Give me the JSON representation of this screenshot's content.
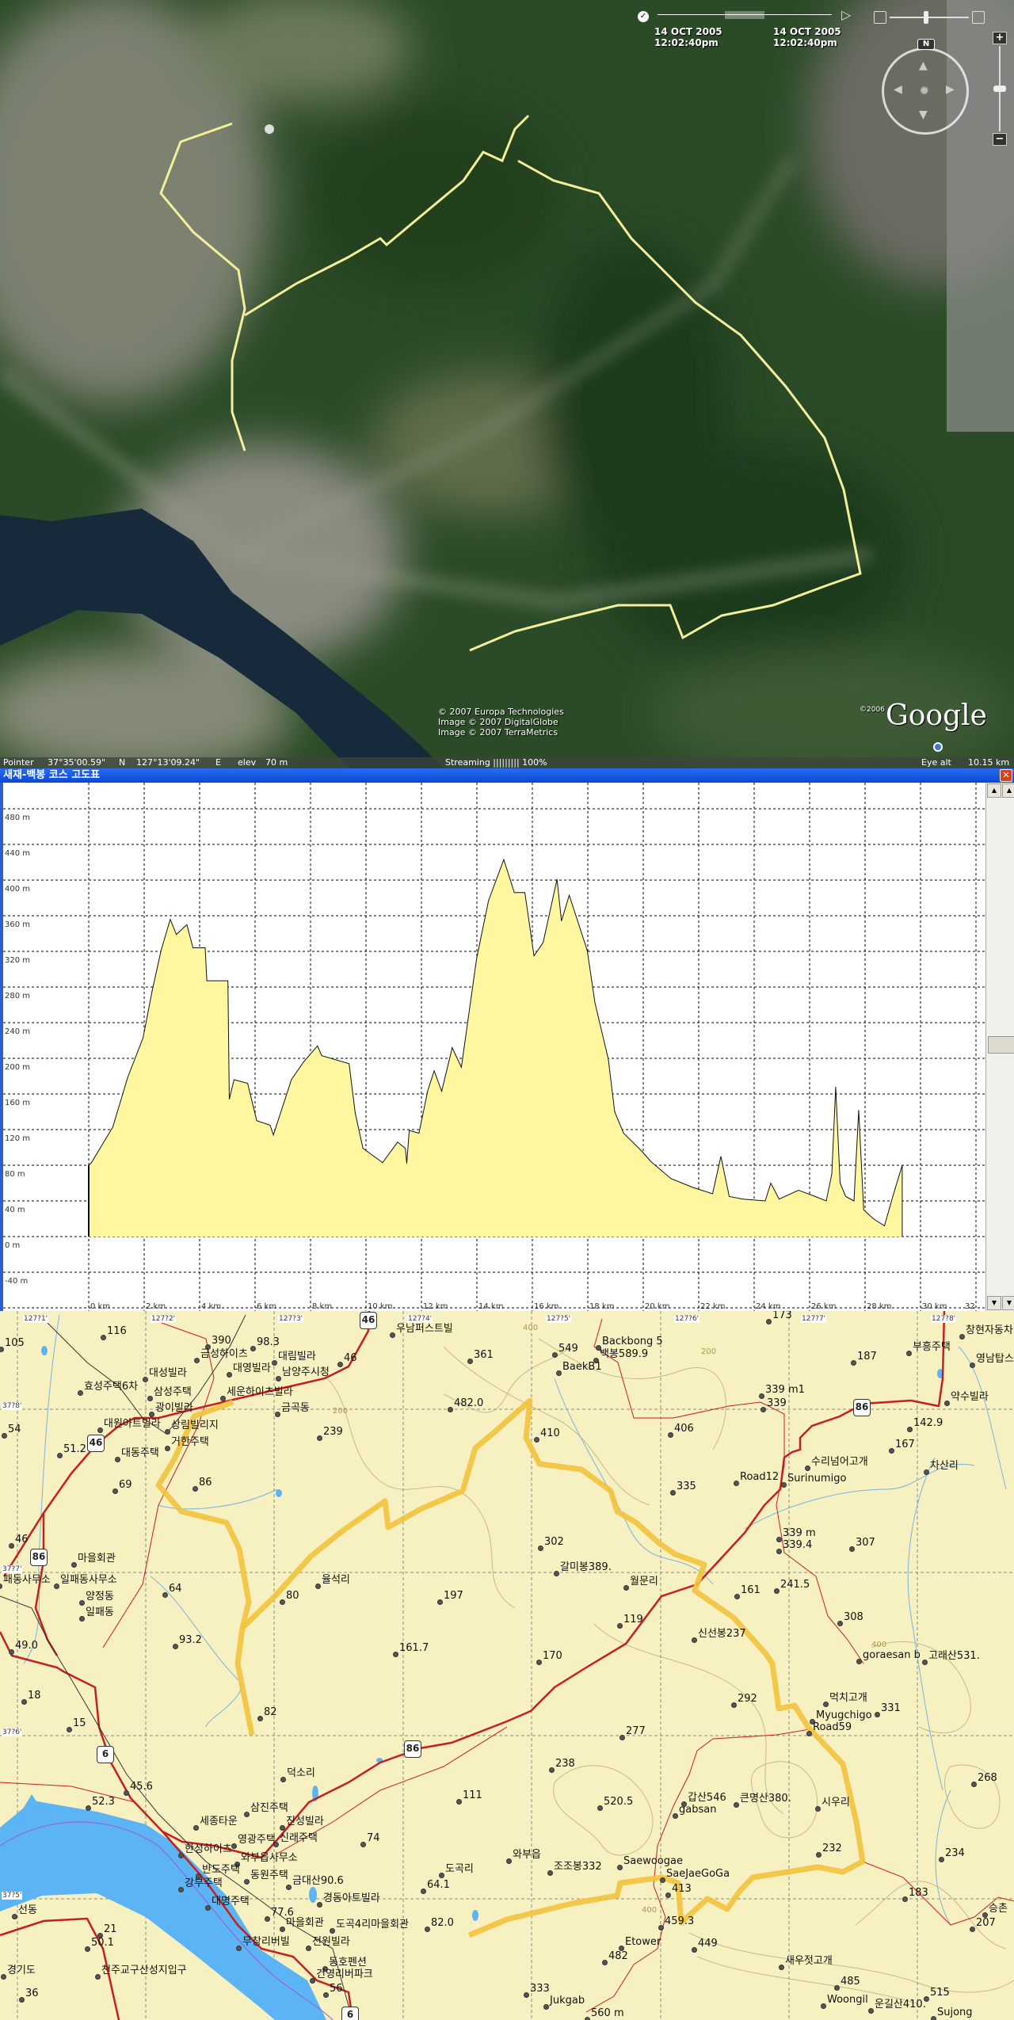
{
  "earth": {
    "time_slider": {
      "start_date": "14 OCT 2005",
      "start_time": "12:02:40pm",
      "end_date": "14 OCT 2005",
      "end_time": "12:02:40pm"
    },
    "compass_north": "N",
    "zoom_in": "+",
    "zoom_out": "−",
    "attribution": [
      "© 2007 Europa Technologies",
      "Image © 2007 DigitalGlobe",
      "Image © 2007 TerraMetrics"
    ],
    "google_copyright": "©2006",
    "google_logo": "Google",
    "status": {
      "pointer_label": "Pointer",
      "lat": "37°35'00.59\"",
      "lat_dir": "N",
      "lon": "127°13'09.24\"",
      "lon_dir": "E",
      "elev_label": "elev",
      "elev": "70 m",
      "streaming": "Streaming ||||||||| 100%",
      "eye_alt_label": "Eye alt",
      "eye_alt": "10.15 km"
    },
    "track_color": "#f3ef9a"
  },
  "profile_window": {
    "title": "새재-백봉 코스 고도표",
    "close_icon": "close-icon",
    "fill_color": "#fff7a0"
  },
  "chart_data": {
    "type": "area",
    "title": "",
    "xlabel": "",
    "ylabel": "",
    "xlim": [
      0,
      32
    ],
    "ylim": [
      -80,
      480
    ],
    "grid": true,
    "y_ticks": [
      "480 m",
      "440 m",
      "400 m",
      "360 m",
      "320 m",
      "280 m",
      "240 m",
      "200 m",
      "160 m",
      "120 m",
      "80 m",
      "40 m",
      "0 m",
      "-40 m"
    ],
    "x_ticks": [
      "0 km",
      "2 km",
      "4 km",
      "6 km",
      "8 km",
      "10 km",
      "12 km",
      "14 km",
      "16 km",
      "18 km",
      "20 km",
      "22 km",
      "24 km",
      "26 km",
      "28 km",
      "30 km",
      "32"
    ],
    "x_km": [
      0,
      0.1,
      0.87,
      1.41,
      1.96,
      2.29,
      2.61,
      2.94,
      3.16,
      3.54,
      3.76,
      4.2,
      4.26,
      5.02,
      5.07,
      5.24,
      5.73,
      6.06,
      6.54,
      6.66,
      7.31,
      7.75,
      8.25,
      8.4,
      9.39,
      9.61,
      9.89,
      10.6,
      11.14,
      11.42,
      11.47,
      11.56,
      11.91,
      12.23,
      12.46,
      12.73,
      13.11,
      13.44,
      13.99,
      14.42,
      14.97,
      15.35,
      15.73,
      16.06,
      16.39,
      16.89,
      17.05,
      17.33,
      17.98,
      18.26,
      18.74,
      18.97,
      19.29,
      19.94,
      20.28,
      21.0,
      21.8,
      22.5,
      22.8,
      23.1,
      23.6,
      24.4,
      24.6,
      24.9,
      25.6,
      26.2,
      26.6,
      26.8,
      26.94,
      27.1,
      27.3,
      27.6,
      27.77,
      27.95,
      28.3,
      28.7,
      29.0,
      29.34
    ],
    "elev_m": [
      80,
      83,
      123,
      179,
      223,
      276,
      321,
      356,
      339,
      350,
      324,
      324,
      287,
      287,
      154,
      176,
      172,
      130,
      125,
      114,
      176,
      196,
      214,
      203,
      194,
      139,
      99,
      83,
      106,
      99,
      82,
      119,
      116,
      164,
      186,
      163,
      212,
      190,
      312,
      377,
      423,
      386,
      386,
      315,
      330,
      401,
      354,
      383,
      321,
      262,
      199,
      140,
      116,
      96,
      84,
      65,
      55,
      48,
      90,
      45,
      42,
      40,
      60,
      42,
      52,
      45,
      40,
      70,
      168,
      60,
      45,
      40,
      142,
      30,
      20,
      12,
      45,
      80
    ]
  },
  "map": {
    "grid_labels": [
      "127?1'",
      "127?2'",
      "127?3'",
      "127?4'",
      "127?5'",
      "127?6'",
      "127?7'",
      "127?8'",
      "37?8'",
      "37?7'",
      "37?6'",
      "37?5'"
    ],
    "road_shields": [
      "46",
      "46",
      "86",
      "86",
      "86",
      "6",
      "6"
    ],
    "labels": [
      "116",
      "105",
      "390",
      "98.3",
      "금성하이츠",
      "대림빌라",
      "대성빌라",
      "대영빌라",
      "남양주시청",
      "46",
      "우남퍼스트빌",
      "361",
      "효성주택6차",
      "삼성주택",
      "세운하이츠빌라",
      "금곡동",
      "482.0",
      "광이빌라",
      "대원아트빌라",
      "상림빌리지",
      "54",
      "239",
      "51.2",
      "거한주택",
      "대동주택",
      "69",
      "86",
      "46",
      "마을회관",
      "패동사무소",
      "일패동사무소",
      "율석리",
      "64",
      "80",
      "197",
      "양정동",
      "일패동",
      "93.2",
      "161.7",
      "49.0",
      "173",
      "549",
      "Backbong 5",
      "백봉589.9",
      "BaekB1",
      "187",
      "창현자동차",
      "부흥주택",
      "영남탑스",
      "339 m1",
      "339",
      "약수빌라",
      "410",
      "406",
      "142.9",
      "167",
      "수리넘어고개",
      "차산리",
      "Road12",
      "Surinumigo",
      "335",
      "302",
      "339 m",
      "339.4",
      "307",
      "갈미봉389.",
      "월문리",
      "161",
      "241.5",
      "119",
      "308",
      "신선봉237",
      "170",
      "goraesan b",
      "고래산531.",
      "18",
      "15",
      "82",
      "덕소리",
      "45.6",
      "52.3",
      "111",
      "삼진주택",
      "세종타운",
      "진성빌라",
      "신래주택",
      "영광주택",
      "한성하이츠",
      "와부읍사무소",
      "74",
      "반도주택",
      "동원주택",
      "강부주택",
      "금대산90.6",
      "64.1",
      "도곡리",
      "선동",
      "대명주택",
      "경동아트빌라",
      "77.6",
      "82.0",
      "21",
      "50.1",
      "마을회관",
      "도곡4리마을회관",
      "무창리버빌",
      "전원빌라",
      "경기도",
      "천주교구산성지입구",
      "동호펜션",
      "건영리버파크",
      "56",
      "36",
      "292",
      "먹치고개",
      "Myugchigo",
      "331",
      "Road59",
      "277",
      "238",
      "268",
      "520.5",
      "갑산546",
      "gabsan",
      "큰명산380.",
      "시우리",
      "232",
      "234",
      "와부읍",
      "조조봉332",
      "Saewoogae",
      "SaeJaeGoGa",
      "413",
      "183",
      "승촌",
      "207",
      "459.3",
      "449",
      "Etower",
      "482",
      "새우젓고개",
      "485",
      "333",
      "515",
      "Woongil",
      "운길산410.",
      "Jukgab",
      "560 m",
      "Sujong"
    ],
    "contour_labels": [
      "200",
      "400",
      "400",
      "200",
      "400"
    ],
    "track_color": "#f2c23c",
    "road_color": "#c81e1e",
    "water_color": "#5cb4f4"
  }
}
